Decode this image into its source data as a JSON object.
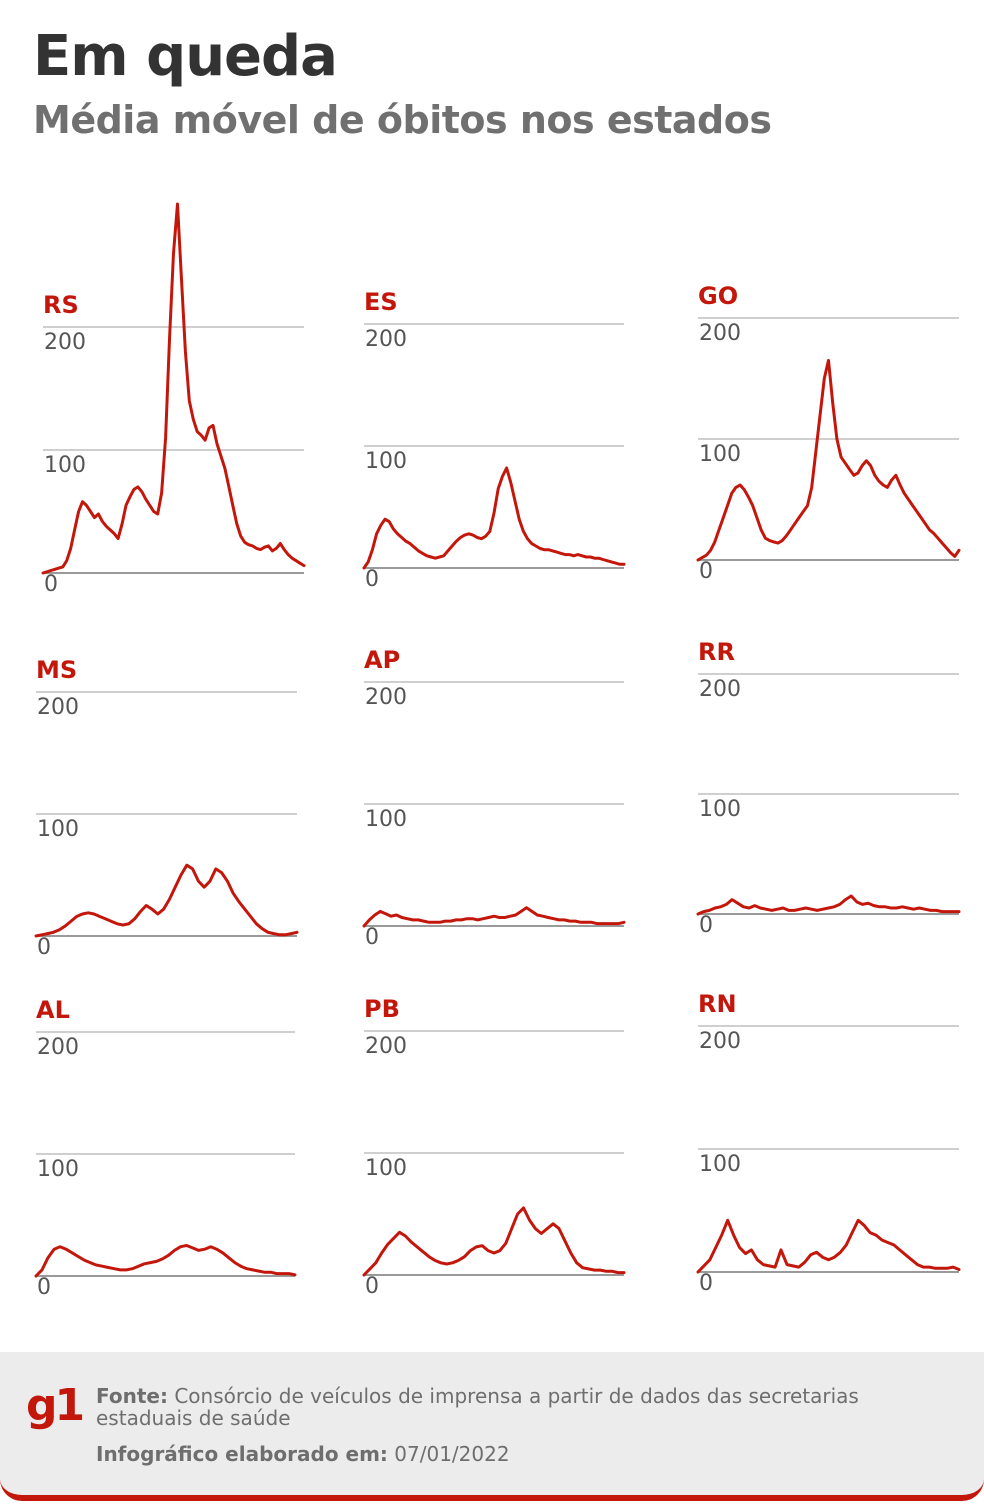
{
  "header": {
    "title": "Em queda",
    "subtitle": "Média móvel de óbitos nos estados"
  },
  "footer": {
    "logo": "g1",
    "source_label": "Fonte:",
    "source_text": "Consórcio de veículos de imprensa a partir de dados das secretarias estaduais de saúde",
    "date_label": "Infográfico elaborado em:",
    "date_value": "07/01/2022"
  },
  "colors": {
    "line": "#c4170c",
    "label": "#c4170c",
    "title": "#333333",
    "subtitle": "#707070",
    "footer_bg": "#ececec"
  },
  "chart_data": [
    {
      "type": "line",
      "title": "RS",
      "ylim": [
        0,
        200
      ],
      "yticks": [
        "0",
        "100",
        "200"
      ],
      "grid": true,
      "series": [
        {
          "values": [
            0,
            1,
            2,
            3,
            4,
            5,
            10,
            20,
            35,
            50,
            58,
            55,
            50,
            45,
            48,
            42,
            38,
            35,
            32,
            28,
            40,
            55,
            62,
            68,
            70,
            66,
            60,
            55,
            50,
            48,
            65,
            110,
            190,
            260,
            300,
            240,
            180,
            140,
            125,
            115,
            112,
            108,
            118,
            120,
            105,
            95,
            85,
            70,
            55,
            40,
            30,
            25,
            23,
            22,
            20,
            19,
            21,
            22,
            18,
            20,
            24,
            19,
            15,
            12,
            10,
            8,
            6
          ]
        }
      ]
    },
    {
      "type": "line",
      "title": "ES",
      "ylim": [
        0,
        200
      ],
      "yticks": [
        "0",
        "100",
        "200"
      ],
      "grid": true,
      "series": [
        {
          "values": [
            0,
            5,
            15,
            28,
            35,
            40,
            38,
            32,
            28,
            25,
            22,
            20,
            17,
            14,
            12,
            10,
            9,
            8,
            9,
            10,
            14,
            18,
            22,
            25,
            27,
            28,
            27,
            25,
            24,
            26,
            30,
            45,
            65,
            75,
            82,
            70,
            55,
            40,
            30,
            24,
            20,
            18,
            16,
            15,
            15,
            14,
            13,
            12,
            11,
            11,
            10,
            11,
            10,
            9,
            9,
            8,
            8,
            7,
            6,
            5,
            4,
            3,
            3
          ]
        }
      ]
    },
    {
      "type": "line",
      "title": "GO",
      "ylim": [
        0,
        200
      ],
      "yticks": [
        "0",
        "100",
        "200"
      ],
      "grid": true,
      "series": [
        {
          "values": [
            0,
            2,
            4,
            8,
            15,
            25,
            35,
            45,
            55,
            60,
            62,
            58,
            52,
            45,
            35,
            25,
            18,
            16,
            15,
            14,
            16,
            20,
            25,
            30,
            35,
            40,
            45,
            60,
            90,
            120,
            150,
            165,
            130,
            100,
            85,
            80,
            75,
            70,
            72,
            78,
            82,
            78,
            70,
            65,
            62,
            60,
            66,
            70,
            62,
            55,
            50,
            45,
            40,
            35,
            30,
            25,
            22,
            18,
            14,
            10,
            6,
            3,
            8
          ]
        }
      ]
    },
    {
      "type": "line",
      "title": "MS",
      "ylim": [
        0,
        200
      ],
      "yticks": [
        "0",
        "100",
        "200"
      ],
      "grid": true,
      "series": [
        {
          "values": [
            0,
            1,
            2,
            3,
            5,
            8,
            12,
            16,
            18,
            19,
            18,
            16,
            14,
            12,
            10,
            9,
            10,
            14,
            20,
            25,
            22,
            18,
            22,
            30,
            40,
            50,
            58,
            55,
            45,
            40,
            45,
            55,
            52,
            45,
            35,
            28,
            22,
            16,
            10,
            6,
            3,
            2,
            1,
            1,
            2,
            3
          ]
        }
      ]
    },
    {
      "type": "line",
      "title": "AP",
      "ylim": [
        0,
        200
      ],
      "yticks": [
        "0",
        "100",
        "200"
      ],
      "grid": true,
      "series": [
        {
          "values": [
            0,
            5,
            9,
            12,
            10,
            8,
            9,
            7,
            6,
            5,
            5,
            4,
            3,
            3,
            3,
            4,
            4,
            5,
            5,
            6,
            6,
            5,
            6,
            7,
            8,
            7,
            7,
            8,
            9,
            12,
            15,
            12,
            9,
            8,
            7,
            6,
            5,
            5,
            4,
            4,
            3,
            3,
            3,
            2,
            2,
            2,
            2,
            2,
            3
          ]
        }
      ]
    },
    {
      "type": "line",
      "title": "RR",
      "ylim": [
        0,
        200
      ],
      "yticks": [
        "0",
        "100",
        "200"
      ],
      "grid": true,
      "series": [
        {
          "values": [
            0,
            2,
            3,
            5,
            6,
            8,
            12,
            9,
            6,
            5,
            7,
            5,
            4,
            3,
            4,
            5,
            3,
            3,
            4,
            5,
            4,
            3,
            4,
            5,
            6,
            8,
            12,
            15,
            10,
            8,
            9,
            7,
            6,
            6,
            5,
            5,
            6,
            5,
            4,
            5,
            4,
            3,
            3,
            2,
            2,
            2,
            2
          ]
        }
      ]
    },
    {
      "type": "line",
      "title": "AL",
      "ylim": [
        0,
        200
      ],
      "yticks": [
        "0",
        "100",
        "200"
      ],
      "grid": true,
      "series": [
        {
          "values": [
            0,
            5,
            15,
            22,
            24,
            22,
            19,
            16,
            13,
            11,
            9,
            8,
            7,
            6,
            5,
            5,
            6,
            8,
            10,
            11,
            12,
            14,
            17,
            21,
            24,
            25,
            23,
            21,
            22,
            24,
            22,
            19,
            15,
            11,
            8,
            6,
            5,
            4,
            3,
            3,
            2,
            2,
            2,
            1
          ]
        }
      ]
    },
    {
      "type": "line",
      "title": "PB",
      "ylim": [
        0,
        200
      ],
      "yticks": [
        "0",
        "100",
        "200"
      ],
      "grid": true,
      "series": [
        {
          "values": [
            0,
            5,
            10,
            18,
            25,
            30,
            35,
            32,
            27,
            23,
            19,
            15,
            12,
            10,
            9,
            10,
            12,
            15,
            20,
            23,
            24,
            20,
            18,
            20,
            26,
            38,
            50,
            55,
            45,
            38,
            34,
            38,
            42,
            38,
            28,
            18,
            10,
            6,
            5,
            4,
            4,
            3,
            3,
            2,
            2
          ]
        }
      ]
    },
    {
      "type": "line",
      "title": "RN",
      "ylim": [
        0,
        200
      ],
      "yticks": [
        "0",
        "100",
        "200"
      ],
      "grid": true,
      "series": [
        {
          "values": [
            0,
            5,
            10,
            20,
            30,
            42,
            30,
            20,
            15,
            18,
            10,
            6,
            5,
            4,
            18,
            6,
            5,
            4,
            8,
            14,
            16,
            12,
            10,
            12,
            16,
            22,
            32,
            42,
            38,
            32,
            30,
            26,
            24,
            22,
            18,
            14,
            10,
            6,
            4,
            4,
            3,
            3,
            3,
            4,
            2
          ]
        }
      ]
    }
  ]
}
